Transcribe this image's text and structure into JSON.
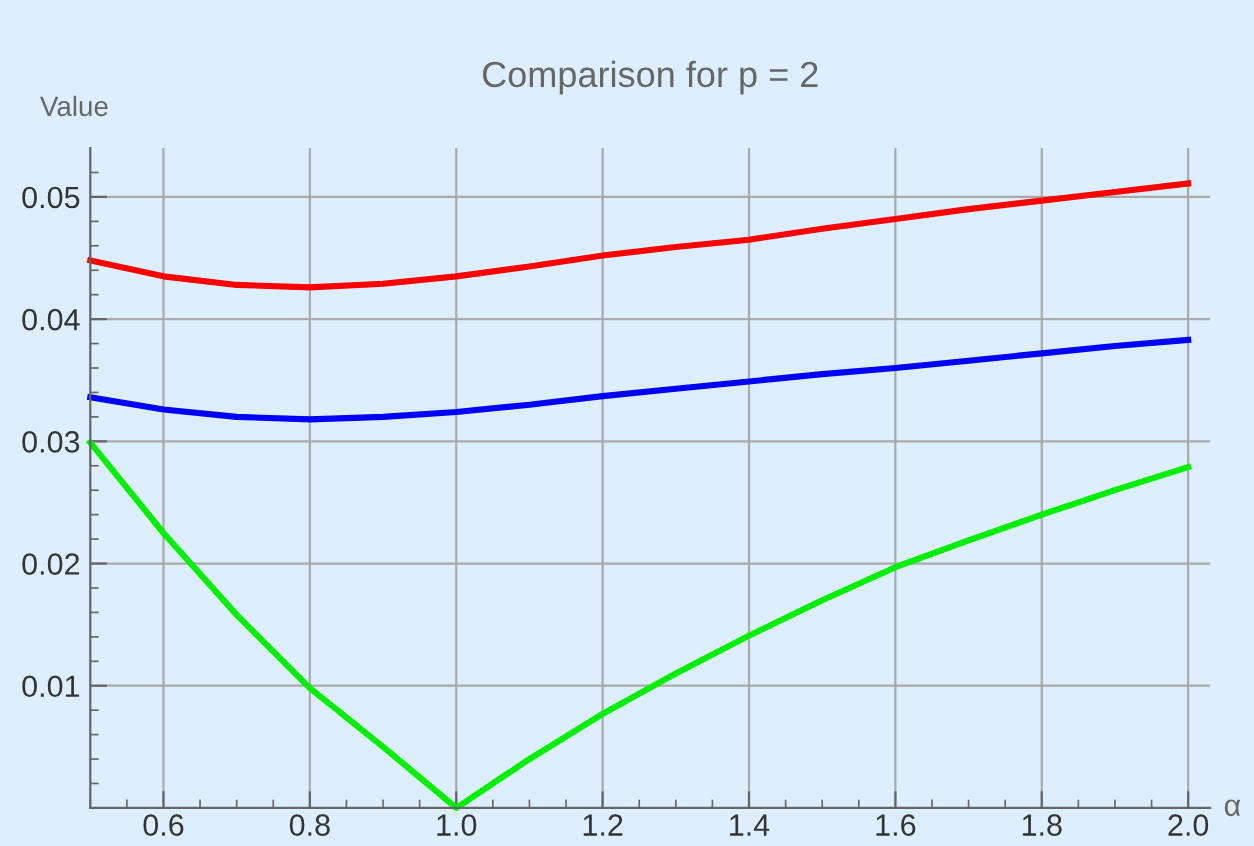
{
  "chart_data": {
    "type": "line",
    "title": "Comparison for p = 2",
    "ylabel": "Value",
    "xlabel": "α",
    "xlim": [
      0.5,
      2.03
    ],
    "ylim": [
      0,
      0.054
    ],
    "xticks": [
      0.6,
      0.8,
      {
        "value": 1.0,
        "label": "1.0"
      },
      1.2,
      1.4,
      1.6,
      1.8,
      {
        "value": 2.0,
        "label": "2.0"
      }
    ],
    "yticks": [
      0.01,
      0.02,
      0.03,
      0.04,
      0.05
    ],
    "grid": true,
    "legend": false,
    "marker": "none",
    "line_style": "solid",
    "x": [
      0.5,
      0.6,
      0.7,
      0.8,
      0.9,
      1.0,
      1.1,
      1.2,
      1.3,
      1.4,
      1.5,
      1.6,
      1.7,
      1.8,
      1.9,
      2.0
    ],
    "series": [
      {
        "color": "#ff0000",
        "values": [
          0.0448,
          0.0435,
          0.0428,
          0.0426,
          0.0429,
          0.0435,
          0.0443,
          0.0452,
          0.0459,
          0.0465,
          0.0474,
          0.0482,
          0.049,
          0.0497,
          0.0504,
          0.0511
        ]
      },
      {
        "color": "#0000ff",
        "values": [
          0.0336,
          0.0326,
          0.032,
          0.0318,
          0.032,
          0.0324,
          0.033,
          0.0337,
          0.0343,
          0.0349,
          0.0355,
          0.036,
          0.0366,
          0.0372,
          0.0378,
          0.0383
        ]
      },
      {
        "color": "#00ee00",
        "values": [
          0.0299,
          0.0225,
          0.0158,
          0.0098,
          0.005,
          0.0,
          0.004,
          0.0077,
          0.011,
          0.0141,
          0.017,
          0.0197,
          0.0219,
          0.024,
          0.026,
          0.0279
        ]
      }
    ]
  }
}
